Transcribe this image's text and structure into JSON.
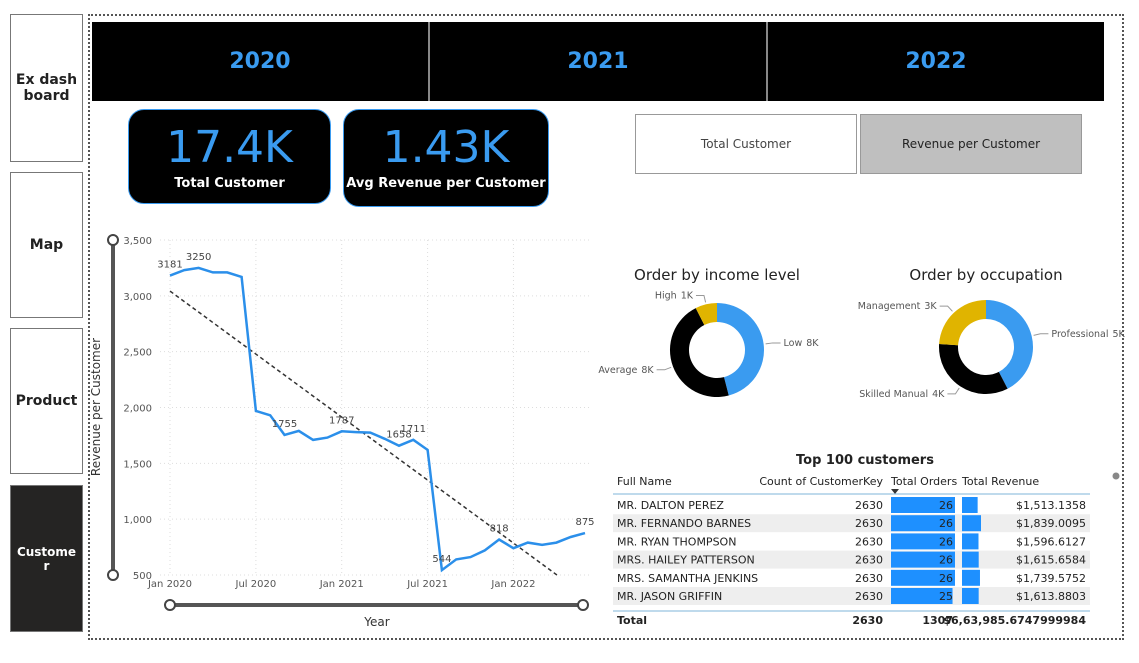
{
  "nav": {
    "items": [
      "Ex dashboard",
      "Map",
      "Product",
      "Customer"
    ],
    "selected": 3
  },
  "years": [
    "2020",
    "2021",
    "2022"
  ],
  "cards": [
    {
      "value": "17.4K",
      "label": "Total Customer"
    },
    {
      "value": "1.43K",
      "label": "Avg Revenue per Customer"
    }
  ],
  "toggle": {
    "options": [
      "Total Customer",
      "Revenue per Customer"
    ],
    "selected": 1
  },
  "chart_data": [
    {
      "type": "line",
      "xlabel": "Year",
      "ylabel": "Revenue per Customer",
      "color": "#2b8fea",
      "grid": true,
      "trend_line": true,
      "x": [
        "2020-01",
        "2020-02",
        "2020-03",
        "2020-04",
        "2020-05",
        "2020-06",
        "2020-07",
        "2020-08",
        "2020-09",
        "2020-10",
        "2020-11",
        "2020-12",
        "2021-01",
        "2021-02",
        "2021-03",
        "2021-04",
        "2021-05",
        "2021-06",
        "2021-07",
        "2021-08",
        "2021-09",
        "2021-10",
        "2021-11",
        "2021-12",
        "2022-01",
        "2022-02",
        "2022-03",
        "2022-04",
        "2022-05",
        "2022-06"
      ],
      "values": [
        3181,
        3230,
        3250,
        3210,
        3210,
        3170,
        1970,
        1930,
        1755,
        1790,
        1710,
        1730,
        1787,
        1780,
        1775,
        1720,
        1658,
        1711,
        1620,
        544,
        640,
        660,
        720,
        818,
        740,
        790,
        770,
        790,
        840,
        875
      ],
      "value_labels": [
        "3181",
        null,
        "3250",
        null,
        null,
        null,
        null,
        null,
        "1755",
        null,
        null,
        null,
        "1787",
        null,
        null,
        null,
        "1658",
        "1711",
        null,
        "544",
        null,
        null,
        null,
        "818",
        null,
        null,
        null,
        null,
        null,
        "875"
      ],
      "ylim": [
        500,
        3500
      ],
      "yticks": [
        500,
        {
          "value": 1000,
          "label": "1,000"
        },
        {
          "value": 1500,
          "label": "1,500"
        },
        {
          "value": 2000,
          "label": "2,000"
        },
        {
          "value": 2500,
          "label": "2,500"
        },
        {
          "value": 3000,
          "label": "3,000"
        },
        {
          "value": 3500,
          "label": "3,500"
        }
      ],
      "xticks": [
        {
          "value": "2020-01",
          "label": "Jan 2020"
        },
        {
          "value": "2020-07",
          "label": "Jul 2020"
        },
        {
          "value": "2021-01",
          "label": "Jan 2021"
        },
        {
          "value": "2021-07",
          "label": "Jul 2021"
        },
        {
          "value": "2022-01",
          "label": "Jan 2022"
        }
      ]
    },
    {
      "type": "donut",
      "title": "Order by income level",
      "categories": [
        "Low",
        "Average",
        "High"
      ],
      "values": [
        8.0,
        8.1,
        1.3
      ],
      "value_labels": [
        "8K",
        "8K",
        "1K"
      ],
      "colors": [
        "#3a9bf0",
        "#000000",
        "#e0b400"
      ]
    },
    {
      "type": "donut",
      "title": "Order by occupation",
      "categories": [
        "Professional",
        "Skilled Manual",
        "Management"
      ],
      "values": [
        5.3,
        4.2,
        3.0
      ],
      "value_labels": [
        "5K",
        "4K",
        "3K"
      ],
      "colors": [
        "#3a9bf0",
        "#000000",
        "#e0b400"
      ]
    }
  ],
  "table": {
    "title": "Top 100 customers",
    "columns": [
      "Full Name",
      "Count of CustomerKey",
      "Total Orders",
      "Total Revenue"
    ],
    "rows": [
      [
        "MR. DALTON PEREZ",
        2630,
        26,
        "$1,513.1358"
      ],
      [
        "MR. FERNANDO BARNES",
        2630,
        26,
        "$1,839.0095"
      ],
      [
        "MR. RYAN THOMPSON",
        2630,
        26,
        "$1,596.6127"
      ],
      [
        "MRS. HAILEY PATTERSON",
        2630,
        26,
        "$1,615.6584"
      ],
      [
        "MRS. SAMANTHA JENKINS",
        2630,
        26,
        "$1,739.5752"
      ],
      [
        "MR. JASON GRIFFIN",
        2630,
        25,
        "$1,613.8803"
      ]
    ],
    "total": [
      "Total",
      2630,
      1307,
      "$6,63,985.6747999984"
    ]
  }
}
